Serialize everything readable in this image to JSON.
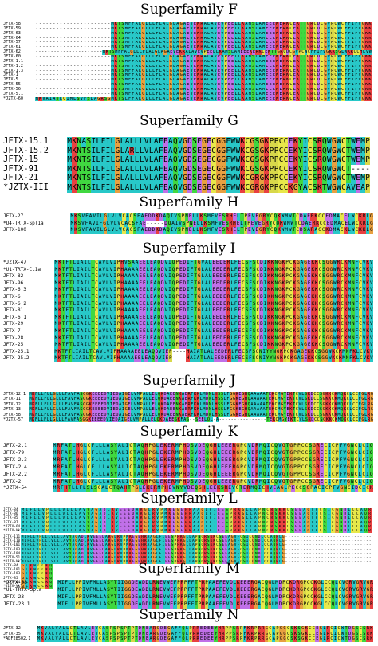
{
  "figure": {
    "colors": {
      "hydrophobic": "#28c8c8",
      "cysteine": "#e8e84a",
      "glycine": "#e8a040",
      "proline": "#d8d84a",
      "polar": "#40d840",
      "acidic": "#c070e8",
      "basic": "#e84040",
      "gap": "#ffffff"
    },
    "superfamilies": [
      {
        "id": "F",
        "title": "Superfamily F",
        "sequences": [
          {
            "label": "JFTX-58",
            "seq": "----------------------MKTSMFFALGLLLFLALGLAGAEVEKRALAVEVPEELLKAMSLAMEEEKERKCEKTTGRCDCGVPCWCFFIFVGKK"
          },
          {
            "label": "JFTX-59",
            "seq": "----------------------MKTSMFFALGLLLFLALGLAGAEVEKRALAVEVPEELLKAMSLAMEEEKERKCEKTTGRCDCGVPCWCFFIFVGKK"
          },
          {
            "label": "JFTX-63",
            "seq": "----------------------MKTSMFFALGLLLFLALGLAGAEVEKRALAVEVPEELLKAMSLAMEEEKERKCEKTTGRCDCGVPCWCFFIFVGKK"
          },
          {
            "label": "JFTX-64",
            "seq": "----------------------MKTSMFFALGLLLFLALGLAGAEVEKRALAVEVPEELLKAMSLAMEEEKERKCEKTTGRCDCGVPCWCFFIFVGKK"
          },
          {
            "label": "JFTX-57",
            "seq": "----------------------MKTSMFFALGLLLFLALGLAGAEVEKRALAVEVPEELLKAMSLAMEEEKERKCEKTTGRCDCGVPCWCFFIFVGKK"
          },
          {
            "label": "JFTX-61",
            "seq": "----------------------MKTSMFFALGLLLFLALGLAGAEVEKRALAVEVPEELLKAMSLAMEEEKERKCEKTTGRCDCGVPCWCFFIFVGKK"
          },
          {
            "label": "JFTX-62",
            "seq": "----------------------MKTSMFFALGLLLFLALGLAGAEVEKRALAVEVPEELLKAMSLAMEEEKERKCEKTTGRCDCGVPCWCFFIFVGKKSGLWKRCCHLVW"
          },
          {
            "label": "JFTX-60",
            "seq": "----------------------MKTSMFFALGLLLFLALGLAGAEVEKRALAVEVPEELLKAMSLAMEEEKERKCEKTTGRCDCGVPCWCFFIFVGKK"
          },
          {
            "label": "JFTX-1.1",
            "seq": "----------------------MKTSMFFALGLLLFLALGLAGAEVEKRALAVEVPEELLKAMSLAMEEEKERKCEKTTGRCDCGVPCWCFFIFVGKK"
          },
          {
            "label": "JFTX-1.2",
            "seq": "----------------------MKTSMFFALGLLLFLALGLAGAEVEKRALAVEVPEELLKAMSLAMEEEKERKCEKTTGRCDCGVPCWCFFIFVGKK"
          },
          {
            "label": "JFTX-1.3",
            "seq": "----------------------MKTSMFFALGLLLFLALGLAGAEVEKRALAVEVPEELLKAMSLAMEEEKERKCEKTTGRCDCGVPCWCFFIFVGKK"
          },
          {
            "label": "JFTX-1",
            "seq": "----------------------MKTSMFFALGLLLFLALGLAGAEVEKRALAVEVPEELLKAMSLAMEEEKERKCEKTTGRCDCGVPCWCFFIFVGKK"
          },
          {
            "label": "JFTX-5",
            "seq": "----------------------MKTSMFFALGLLLFLALGLAGAEVEKRALAVEVPEELLKAMSLAMEEEKERKCEKTTGRCDCGVPCWCFFIFVGKK"
          },
          {
            "label": "JFTX-55",
            "seq": "----------------------MKTSMFFALGLLLFLALGLAGAEVEKRALAVEVPEELLKAMSLAMEEEKERKCEKTTGRCDCGVPCWCFFIFVGKK"
          },
          {
            "label": "JFTX-56",
            "seq": "----------------------MKTSMFFALGLLLFLALGLAGAEVEKRALAVEVPEELLKAMSLAMEEEKERKCEKTTGRCDCGVPCWCFFIFVGKK"
          },
          {
            "label": "JFTX-5.1",
            "seq": "----------------------MKTSMFFALGLLLFLALGLAGAEVEKRALAVEVPEELLKAMSLAMEEEKERKCEKTTGRCDCGVPCWCFFIFVGKK"
          },
          {
            "label": "*JZTX-60",
            "seq": "MKVAIATLCIMLSVFSLAGRSGMKTSLFFALGLLLFLALGLAGAEVEKRALAVEVPEELLKAMSLAMEEEKERKCEKTTGRCDCGVPCWCFFIFVGKK"
          }
        ]
      },
      {
        "id": "G",
        "title": "Superfamily G",
        "sequences": [
          {
            "label": "JFTX-15.1",
            "seq": "MKNASILFILGLALLLVLAFEAQVGDSEGECGGFWWKCGSGKPPCCEKYICSRQWGWCTWEMP"
          },
          {
            "label": "JFTX-15.2",
            "seq": "MKNTSILFILGLARLLVLAFEAQVGDSEGECGGFWWKCGSGKPPCCEKYICSRQWGWCTWEMP"
          },
          {
            "label": "JFTX-15",
            "seq": "MKNTSILFILGLALLLVLAFEAQVGDSEGECGGFWWKCGSGKPPCCEKYICSRQWGWCTWEMP"
          },
          {
            "label": "JFTX-91",
            "seq": "MKNTSILFILGLALLLVLAFEAQVGDSEGECGGFWWKCGSGKPPCCEKYICSRQWGWCT----"
          },
          {
            "label": "JFTX-21",
            "seq": "MKNTSILFILGLALLLVLAFEAQVGDSEGECGGFWWKCGRGKPPCCEKYICSRQWGWCTWEMP"
          },
          {
            "label": "*JZTX-III",
            "seq": "MKNTSILFILGLALLLVLAFEAQVGDSEGECGGFWWKCGRGKPPCCKGYACSKTWGWCAVEAP"
          }
        ]
      },
      {
        "id": "H",
        "title": "Superfamily H",
        "sequences": [
          {
            "label": "JFTX-27",
            "seq": "MKSVFAVILGLVLVCACSFAEDDKDAQIVSPNELLKSMFVESRHELTPEVEGRYCQKWMWTCDAERKCCEDMACELWCKRLG"
          },
          {
            "label": "*U4-TRTX-Spl1a",
            "seq": "MKSVFAVIFGLVLVCACSFAE-----DQAIVSPNELLKSMFVESRHELTPEVEGRYCQKWMWTCDAERKCCEDMACELWCKRLG"
          },
          {
            "label": "JFTX-100",
            "seq": "MKSVFAVILGLVLVCACSFAEDDKDAQIVSPNELLKSMFVESRHELTPEVEGRYCQKWMWTCDSARACCKDMACKLWCKKLG"
          }
        ]
      },
      {
        "id": "I",
        "title": "Superfamily I",
        "sequences": [
          {
            "label": "*JZTX-47",
            "seq": "MKTFTLIAILTCAVLVIPHVSAAEELEAQDVIQPEDIFTGVALEEDERLFECSFSCDIKKNGKPCKGAGEKKCSGGWRCKMNFCVKV"
          },
          {
            "label": "*U1-TRTX-Ct1a",
            "seq": "MKTFTLIAILTCAVLVIPHAAAAEELEAQDVIQPEDIFTGLALEEDERLFECSFSCDIKKNGKPCKGAGEKKCSGGWRCKMNFCVKV"
          },
          {
            "label": "JFTX-82",
            "seq": "MKTFTLIAILTCAVLVIPHAAAAEELEAQDVIQPEDIFTGLALEEDERLFECSFSCDIKKNGKPCKGAGEKKCSGGWRCKMNFCVKV"
          },
          {
            "label": "JFTX-96",
            "seq": "MKTFTLIAILTCAVLVIPHAAAAEELEAQDVIQPEDIFTGLALEEDERLFECSFSCDIKKNGKPCKGAGEKKCSGGWRCKMNFCVKV"
          },
          {
            "label": "JFTX-6.3",
            "seq": "MKTFTLIAILTCAVLVIPHAAAAEELEAQDVIQPEDIFTGLALEEDERLFECSFSCDIKKNGKPCKGAGEKKCSGGWRCKMNFCVKV"
          },
          {
            "label": "JFTX-6",
            "seq": "MKTFTLIAILTCAVLVIPHAAAAEELEAQDVIQPEDIFTGLALEEDERLFECSFSCDIKKNGKPCKGAGEKKCSGGWRCKMNFCVKV"
          },
          {
            "label": "JFTX-6.2",
            "seq": "MKTFTLIAILTCAVLVIPHAAAAEELEAQDVIQPEDIFTGLALEEDERLFECSFSCDIKKNGKPCKGAGEKKCSGGWRCKMNFCVKV"
          },
          {
            "label": "JFTX-81",
            "seq": "MKTFTLIAILTCAVLVIPHAAAAEELEAQDVIQPEDIFTGLALEEDERLFECSFSCDIKKNGKPCKGAGEKKCSGGWRCKMNFCVKV"
          },
          {
            "label": "JFTX-6.1",
            "seq": "MKTFTLIAILTCAVLVIPHAAAAEELEAQDVIQPEDIFTGLALEEDERLFECSFSCDIKKNGKPCKGAGEKKCSGGWRCKMNFCVKV"
          },
          {
            "label": "JFTX-29",
            "seq": "MKTFTLIAILTCAVLVIPHAAAAEELEAQDVIQPEDIFTGLALEEDERLFECSFSCDIKKNGKPCKGAGEKKCSGGWRCKMNFCVKV"
          },
          {
            "label": "JFTX-7",
            "seq": "MKTFTLIAILTCAVLVIPHAAAAEELEAQDVIQPEDIFTGLALEEDERLFECSFSCDIKKNGKPCKGAGEKKCSGGWRCKMNFCVKV"
          },
          {
            "label": "JFTX-28",
            "seq": "MKTFTLIAILTCAVLVIPHAAAAEELEAQDVIQPEDIFTGLALEEDERLFECSFSCDIKKNGKPCKGAGEKKCSGGWRCKMNFCVKV"
          },
          {
            "label": "JFTX-25",
            "seq": "MKTFTLIAILTCAVLVIPHAAAAEELEAQDVIQPEDIFTGLALEEDERLFECSFSCDIKKNGKPCKGAGEKKCSGGWRCKMNFCVKV"
          },
          {
            "label": "JFTX-25.1",
            "seq": "MKTFTLIAILTCAVLVIPHAAAAEELEAQDVIEP----HAIATLALEEDERLFECSFSCNIYYNGKPCKGAGEKKCSGGWKCKMNFKLCVKV"
          },
          {
            "label": "JFTX-25.2",
            "seq": "MKTFTLIAILTCAVLVIPHAAAAEELEAQDVIEP----HAIATLALEEDERLFECSFSCNIYYNGKPCKGAGEKKCSGGWKCKMNFKLCVKV"
          }
        ]
      },
      {
        "id": "J",
        "title": "Superfamily J",
        "sequences": [
          {
            "label": "JFTX-12.1",
            "seq": "MKFLLFLLGLLLFAVFASGGKEEEEDVIEDAIGELVMPALLELQKDAEENKAERFKKLMDNLHSSLFGGKEGHQAAAAATEKCMGYEKTCVLSKDCCSGKKCKMQKCLCCFGLRG"
          },
          {
            "label": "JFTX-11",
            "seq": "MKFLLFLLGLLLFAVFASGGKEEEEDVIEDAIGELVMPALLELQKDAEENKAERFKKLMDNLHSSLFGGKEGHQAAAAATEKCMGYEKTCVLSKDCCSGKKCKMQKCLCCFGLRG"
          },
          {
            "label": "JFTX-12",
            "seq": "MKFLLFLLGLLLFAVFASGGKEEEEDVIEDAIGELVMPALLELQKDAEENKAERFKKLMDNLHSSLFGGKEGHQAAAAATEKCMGYEKTCVLSKDCCSGKKCKMQKCLCCFGLRG"
          },
          {
            "label": "JFTX-13",
            "seq": "MKFLLFLLGLLLFAVFASGGKEEEEDVIEDAIGELVMPALLELQKDAEENKAERFKKLMDNLHSSLFGGKEGHQAAAAATEKCMGYEKTCVLSKDCCSGKKCKMQKCLCCFGLRG"
          },
          {
            "label": "JFTX-58",
            "seq": "MKFLLFLLGLLLFAVFASGGKEEEEDVIEDAIGELVMPALLELQKDAEENKAERFKKLMDNLHSSLFGGKEGHQAAAAATEKCMGYEKTCVLSKDCCSGKKCKMQKCLCCFGLRG"
          },
          {
            "label": "*JZTX-57",
            "seq": "MKFLLFLLGLLLFAVFASGGKEEEEDVIEDAIGELVMPALLELQKDAEESKFAS--SEELQL-A----------------TEKCMGYEKTCVLSKDCCSGKKCKMQKCLCCFGLRG"
          }
        ]
      },
      {
        "id": "K",
        "title": "Superfamily K",
        "sequences": [
          {
            "label": "JFTX-2.1",
            "seq": "MRFATLHGLCFLLLASYALICTAQHPGLEKERMPHDSVDEQGHLEEERGPCVDRMQICQVGTGPPCCSGRECICPFVGNCLCIQ"
          },
          {
            "label": "JFTX-79",
            "seq": "MRFATLHGLCFLLLASYALICTAQHPGLEKERMPHDSVDEQGHLEEERGPCVDRMQICQVGTGPPCCSGRECICPFVGNCLCIQ"
          },
          {
            "label": "JFTX-2.3",
            "seq": "MRFATLHGLCFLLLASYALICTAQHPGLEKERMPHDSVDEQGHLEEERGPCVDRMQICQVGTGPPCCSGRECICPFVGNCLCIQ"
          },
          {
            "label": "JFTX-2.4",
            "seq": "MRFATLHGLCFLLLASYALICTAQHPGLEKERMPHDSVDEQGHLEEERGPCVDRMQICQVGTGPPCCSGRECICPFVGNCLCIQ"
          },
          {
            "label": "JFTX-2.2",
            "seq": "MRFATLHGLCFLLLASYALICTAQHPGLEKERMPHDSVDEQGHLEEERGPCVDRMQICQVGTGPPCCSGRECICPFVGNCLCIQ"
          },
          {
            "label": "JFTX-2",
            "seq": "MRFATLHGLCFLLLASYALICTAQHPGLEKERMPHDSVDEQGHLEEERGPCVDRMQICQVGTGPPCCSGRECICPFVGNCLCIQ"
          },
          {
            "label": "*JZTX-54",
            "seq": "MRFHTLLFLSLSCALCTQAHTPGLEKERMPHEVNYVDEQGHLEEKSREVCTERMQICHVEAGLPECCSGPACICPFVGNCIDCICK"
          }
        ]
      },
      {
        "id": "L",
        "title": "Superfamily L",
        "block1_labels": [
          "JFTX-84",
          "JFTX-86",
          "JFTX-85",
          "JFTX-87",
          "*JZTX-64",
          "*U1TX-Vk1"
        ],
        "block1_seqs": [
          "MIFLLVPLLLVLLLAVYAGADLKVEEEDARGLRVPMKEGEHRAAGLFIEESPRKGLLAPNCRSKKCSEEAGVFCSICGNDLCCAQR",
          "MIFLLVPLLLVLLLAVYAGADLKVEEEDARGLRVPMKEGEHRAAGLFIEESPRKGLLAPNCRSKKCSEEAGVFCSICGNDLCCAQR",
          "MIFLLVPLLLVLLLAVYAGADLKVEEEDARGLRVPMKEGEHRAAGLFIEESPRKGLLAPNCRSKKCSEEAGVFCSICGNDLCCAQR",
          "MIFLLVPLLLVLLLAVYAGADLKVEEEDARGLRVPMKEGEHRAAGLFIEESPRKGLLAPNCRSKKCSEEAGVFCSICGNDLCCAQR",
          "MIFLLVPLLLVLLLAVYAGADLKVEEEDARGLRVPMKEGEHRAAGLFIEESPRKGLLAPNCRSKKCSEEAGVFCSICGNDLCCAQR",
          "MIFLLVPLLLVLLLAVYAGADLKVEEEDARGLRVPMKEGEHRAAGLFIEESPRKGLLAPNCRSKKCSEEAGVFCSICGNDLCCAQR"
        ],
        "block2_labels": [
          "JFTX-111",
          "JFTX-110",
          "JFTX-101",
          "JFTX-103",
          "JFTX-104",
          "*JZTX-51",
          "*U1TX-Vk1"
        ],
        "block2_seqs": [
          "MIFLLVPLLLVLLLAVYAGADLKVEEEDARGLRVPMKEGEHRAAGLFIEESPRKGLLAPNCRSKKCSEEAGVFCSICGNDLCCAQRLG-----------------------------",
          "MIFLLVPLLLVLLLAVYAGADLKVEEEDARGLRVPMKEGEHRAAGLFIEESPRKGLLAPNCRSKKCSEEAGVFCSICGNDLCCAQRLG-----------------------------",
          "MIFLLVPLLLVLLLAVYAGADLKVEEEDARGLRVPMKEGEHRAAGLFIEESPRKGLLAPNCRSKKCSEEAGVFCSICGNDLCCAQRLG-----------------------------",
          "MIFLLVPLLLVLLLAVYAGADLKVEEEDARGLRVPMKEGEHRAAGLFIEESPRKGLLAPNCRSKKCSEEAGVFCSICGNDLCCAQRLG-----------------------------",
          "MIFLLVPLLLVLLLAVYAGADLKVEEEDARGLRVPMKEGEHRAAGLFIEESPRKGLLAPNCRSKKCSEEAGVFCSICGNDLCCAQRLG-----------------------------",
          "MIFLLVPLLLVLLLAVYAGADLKVEEEDARGLRVPMKEGEHRAAGLFIEESPRKGLLAPNCRSKKCSEEAGVFCSICGNDLCCAQRLG-----------------------------",
          "MIFLLVPLLLVLLLAVYAGADLKVEEEDARGLRVPMKEGEHRAAGLFIEESPRKGLLAPNCRSKKCSEEAGVFCSICGNDLCCAQRLG-----------------------------"
        ],
        "block3_labels": [
          "JFTX-84",
          "JFTX-101",
          "JFTX-103",
          "JFTX-85",
          "*JZTX-64",
          "*U1TX-Vk1"
        ],
        "block3_seqs": [
          "GLKWCCKQ",
          "GLKWCCKQ",
          "GLKWCCKQ",
          "GLKWCCKQ",
          "GLKWCCKQ",
          "GLKWCCKQ"
        ]
      },
      {
        "id": "M",
        "title": "Superfamily M",
        "sequences": [
          {
            "label": "*JZTX-58",
            "seq": "MIFLLPPIVFMLLASYTIIGGDEADDLRNEVWEFPRPFFTPRPAAEFEVDLKEEERGACQGLMDPCKDRGPCCKGLCCQLCVGRVGRVGR"
          },
          {
            "label": "*U1-TRTX-Spla",
            "seq": "MIFLLPPIVFMLLASYTIIGGDEADDLRNEVWEFPRPFFTPRPAAEFEVDLKEEERGACQGLMDPCKDRGPCCKGLCCQLCVGRVGRVGR"
          },
          {
            "label": "JFTX-23",
            "seq": "MIFLLPPIVFMLLASYTIIGGDEADDLRNEVWEFPRPFFTPRPAAEFEVDLKEEERGACQGLMDPCKDRGPCCKGLCCQLCVGRVGRVGR"
          },
          {
            "label": "JFTX-23.1",
            "seq": "MIFLLPPIVFMLLASYTIIGGDEADDLRNEVWEFPRPFFTPRPAAEFEVDLKEEERGACQGLMDPCKDRGPCCKGLCCQLCVGRVGRVGR"
          }
        ]
      },
      {
        "id": "N",
        "title": "Superfamily N",
        "sequences": [
          {
            "label": "JFTX-32",
            "seq": "MKVALVALLCTLAVLEVCASPSPSPTPTDNEARGDEGAFFQLPRREDEEYHRPPSRPFKRPRRGCAPGGCSKSGKCCEGLRCICWTDGSCSRK"
          },
          {
            "label": "JFTX-35",
            "seq": "MKVALVALLCTLAVLEVCASPSPSPTPTDNEARGDEGAFFQLPRREDEEYHRPPSRPFKRPRRGCAPGGCSKSGKCCEGLRCICWTDGSCSRK"
          },
          {
            "label": "*ADF28502.1",
            "seq": "MKVALVALLCTLAVLEVCASPSPSPTPTDNEARGDEGAFFQLPRREDEEYHRPPSRPFKRPRRGCAPGGCSKSGKCCEGLRCICWTDGSCSRK"
          }
        ]
      }
    ]
  }
}
